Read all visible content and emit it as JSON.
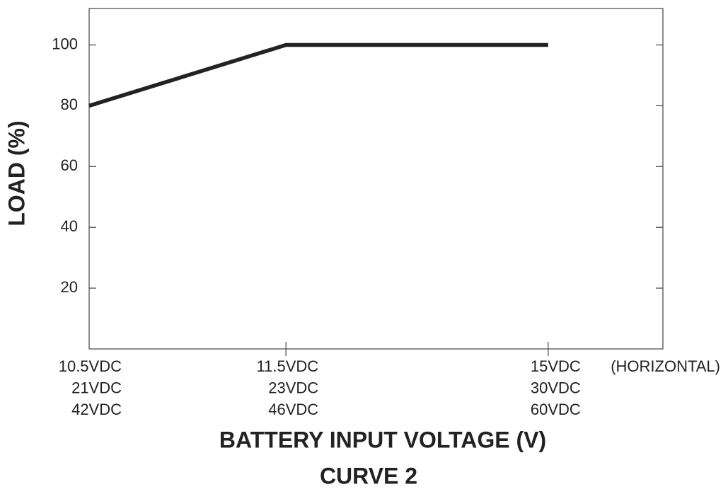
{
  "chart_data": {
    "type": "line",
    "categories": [
      [
        "10.5VDC",
        "21VDC",
        "42VDC"
      ],
      [
        "11.5VDC",
        "23VDC",
        "46VDC"
      ],
      [
        "15VDC",
        "30VDC",
        "60VDC"
      ]
    ],
    "x_note": "(HORIZONTAL)",
    "series": [
      {
        "name": "Load",
        "color": "#222222",
        "values": [
          80,
          100,
          100
        ]
      }
    ],
    "ylim": [
      0,
      112
    ],
    "yticks": [
      20,
      40,
      60,
      80,
      100
    ],
    "xlabel": "BATTERY INPUT VOLTAGE (V)",
    "ylabel": "LOAD (%)",
    "caption": "CURVE 2"
  }
}
